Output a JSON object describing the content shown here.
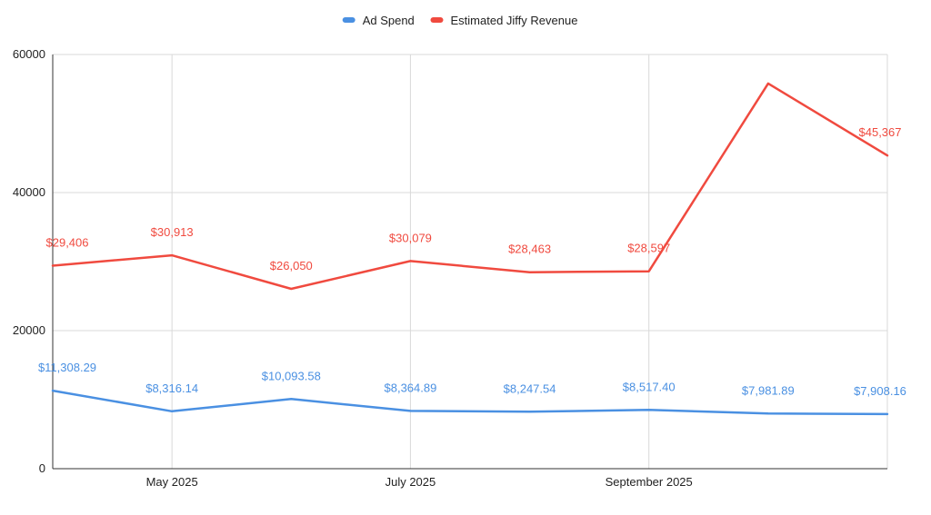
{
  "colors": {
    "ad_spend": "#4a90e2",
    "revenue": "#f04a3f",
    "grid": "#d9d9d9",
    "axis": "#333333",
    "background": "#ffffff"
  },
  "legend": {
    "position": "top-center",
    "items": [
      {
        "name": "Ad Spend",
        "color": "#4a90e2"
      },
      {
        "name": "Estimated Jiffy Revenue",
        "color": "#f04a3f"
      }
    ]
  },
  "chart_data": {
    "type": "line",
    "title": "",
    "xlabel": "",
    "ylabel": "",
    "grid": true,
    "ylim": [
      0,
      60000
    ],
    "y_ticks": [
      0,
      20000,
      40000,
      60000
    ],
    "y_tick_labels": [
      "0",
      "20000",
      "40000",
      "60000"
    ],
    "x": [
      "2025-04",
      "2025-05",
      "2025-06",
      "2025-07",
      "2025-08",
      "2025-09",
      "2025-10",
      "2025-11"
    ],
    "x_tick_labels": [
      {
        "x": "2025-05",
        "label": "May 2025"
      },
      {
        "x": "2025-07",
        "label": "July 2025"
      },
      {
        "x": "2025-09",
        "label": "September 2025"
      }
    ],
    "series": [
      {
        "name": "Ad Spend",
        "color": "#4a90e2",
        "values": [
          11308.29,
          8316.14,
          10093.58,
          8364.89,
          8247.54,
          8517.4,
          7981.89,
          7908.16
        ],
        "labels": [
          "$11,308.29",
          "$8,316.14",
          "$10,093.58",
          "$8,364.89",
          "$8,247.54",
          "$8,517.40",
          "$7,981.89",
          "$7,908.16"
        ]
      },
      {
        "name": "Estimated Jiffy Revenue",
        "color": "#f04a3f",
        "values": [
          29406,
          30913,
          26050,
          30079,
          28463,
          28597,
          55800,
          45367
        ],
        "labels": [
          "$29,406",
          "$30,913",
          "$26,050",
          "$30,079",
          "$28,463",
          "$28,597",
          "",
          "$45,367"
        ]
      }
    ]
  }
}
